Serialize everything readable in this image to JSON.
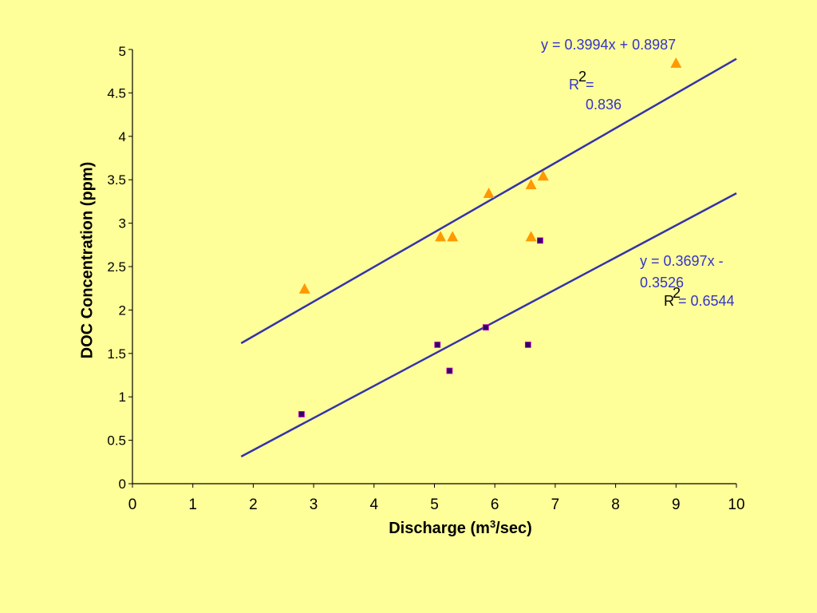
{
  "chart_data": {
    "type": "scatter",
    "xlabel_main": "Discharge (m",
    "xlabel_sup": "3",
    "xlabel_end": "/sec)",
    "ylabel": "DOC Concentration (ppm)",
    "xlim": [
      0,
      10
    ],
    "ylim": [
      0,
      5
    ],
    "x_ticks": [
      "0",
      "1",
      "2",
      "3",
      "4",
      "5",
      "6",
      "7",
      "8",
      "9",
      "10"
    ],
    "y_ticks": [
      "0",
      "0.5",
      "1",
      "1.5",
      "2",
      "2.5",
      "3",
      "3.5",
      "4",
      "4.5",
      "5"
    ],
    "grid": false,
    "series": [
      {
        "marker": "triangle",
        "color": "#FF9900",
        "points": [
          [
            2.85,
            2.25
          ],
          [
            5.1,
            2.85
          ],
          [
            5.3,
            2.85
          ],
          [
            5.9,
            3.35
          ],
          [
            6.6,
            3.45
          ],
          [
            6.8,
            3.55
          ],
          [
            6.6,
            2.85
          ],
          [
            9.0,
            4.85
          ]
        ],
        "trendline": {
          "x_range": [
            1.8,
            10
          ],
          "slope": 0.3994,
          "intercept": 0.8987,
          "color": "#3333AA",
          "equation": "y = 0.3994x + 0.8987",
          "r2_prefix": "R",
          "r2_exp": "2",
          "r2_eq": " =",
          "r2_value": "0.836"
        }
      },
      {
        "marker": "square",
        "color": "#330066",
        "points": [
          [
            2.8,
            0.8
          ],
          [
            5.05,
            1.6
          ],
          [
            5.25,
            1.3
          ],
          [
            5.85,
            1.8
          ],
          [
            6.55,
            1.6
          ],
          [
            6.75,
            2.8
          ]
        ],
        "trendline": {
          "x_range": [
            1.8,
            10
          ],
          "slope": 0.3697,
          "intercept": -0.3526,
          "color": "#3333AA",
          "equation_line1": "y = 0.3697x -",
          "equation_line2": "0.3526",
          "r2_prefix": "R",
          "r2_exp": "2",
          "r2_rest": " = 0.6544"
        }
      }
    ]
  }
}
